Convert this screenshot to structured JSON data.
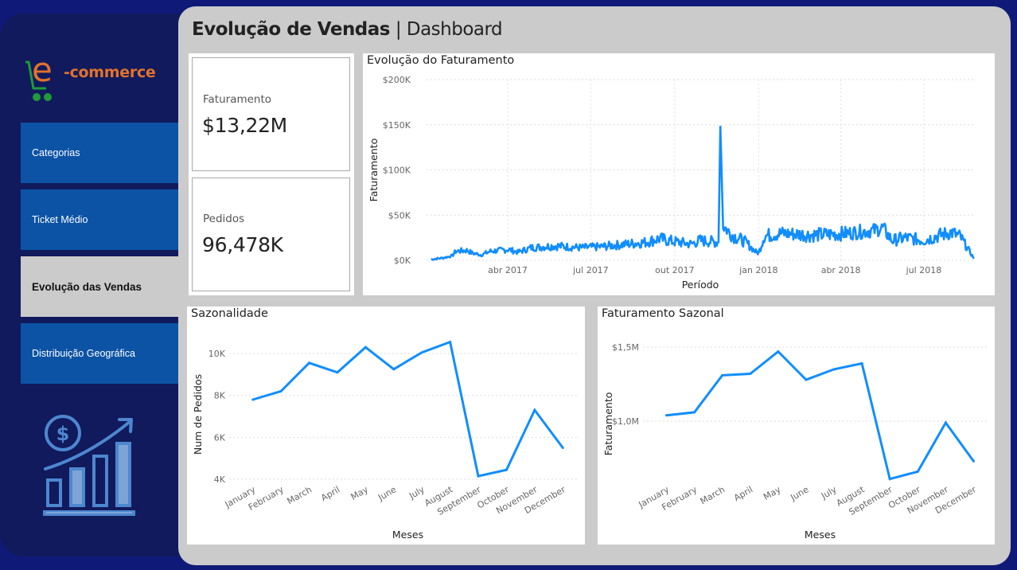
{
  "sidebar": {
    "logo": {
      "prefix": "e",
      "text": "-commerce",
      "cart_color": "#1f9b3a",
      "text_color": "#e2722c"
    },
    "items": [
      {
        "label": "Categorias",
        "active": false
      },
      {
        "label": "Ticket Médio",
        "active": false
      },
      {
        "label": "Evolução das Vendas",
        "active": true
      },
      {
        "label": "Distribuição Geográfica",
        "active": false
      }
    ],
    "illustration_icon": "sales-growth-icon"
  },
  "header": {
    "title_bold": "Evolução de Vendas",
    "separator": "|",
    "title_light": "Dashboard"
  },
  "kpis": [
    {
      "label": "Faturamento",
      "value": "$13,22M"
    },
    {
      "label": "Pedidos",
      "value": "96,478K"
    }
  ],
  "colors": {
    "line": "#118dff",
    "nav_bg": "#0c53a5",
    "nav_active": "#cbcbcb",
    "sidebar_bg": "#111a5c",
    "page_bg": "#0f1a78"
  },
  "chart_data": [
    {
      "id": "evolucao",
      "type": "line",
      "title": "Evolução do Faturamento",
      "xlabel": "Período",
      "ylabel": "Faturamento",
      "ylim": [
        0,
        200000
      ],
      "yticks": [
        {
          "value": 0,
          "label": "$0K"
        },
        {
          "value": 50000,
          "label": "$50K"
        },
        {
          "value": 100000,
          "label": "$100K"
        },
        {
          "value": 150000,
          "label": "$150K"
        },
        {
          "value": 200000,
          "label": "$200K"
        }
      ],
      "xticks": [
        {
          "day": 89,
          "label": "abr 2017"
        },
        {
          "day": 180,
          "label": "jul 2017"
        },
        {
          "day": 272,
          "label": "out 2017"
        },
        {
          "day": 364,
          "label": "jan 2018"
        },
        {
          "day": 454,
          "label": "abr 2018"
        },
        {
          "day": 545,
          "label": "jul 2018"
        }
      ],
      "xlim": [
        0,
        600
      ],
      "grid": true,
      "series_anchors": [
        [
          5,
          1000
        ],
        [
          20,
          3000
        ],
        [
          28,
          5000
        ],
        [
          32,
          10000
        ],
        [
          45,
          11000
        ],
        [
          50,
          8000
        ],
        [
          60,
          6000
        ],
        [
          70,
          10000
        ],
        [
          90,
          12000
        ],
        [
          100,
          9000
        ],
        [
          115,
          14000
        ],
        [
          140,
          16000
        ],
        [
          170,
          14000
        ],
        [
          190,
          15000
        ],
        [
          220,
          18000
        ],
        [
          240,
          20000
        ],
        [
          255,
          24000
        ],
        [
          270,
          21000
        ],
        [
          290,
          18000
        ],
        [
          300,
          22000
        ],
        [
          320,
          20000
        ],
        [
          322,
          148000
        ],
        [
          325,
          38000
        ],
        [
          335,
          28000
        ],
        [
          350,
          20000
        ],
        [
          360,
          10000
        ],
        [
          364,
          8000
        ],
        [
          370,
          27000
        ],
        [
          390,
          30000
        ],
        [
          420,
          28000
        ],
        [
          450,
          29000
        ],
        [
          470,
          31000
        ],
        [
          490,
          33000
        ],
        [
          500,
          36000
        ],
        [
          510,
          22000
        ],
        [
          525,
          25000
        ],
        [
          545,
          22000
        ],
        [
          560,
          27000
        ],
        [
          575,
          31000
        ],
        [
          585,
          26000
        ],
        [
          595,
          10000
        ],
        [
          600,
          2000
        ]
      ]
    },
    {
      "id": "sazonalidade",
      "type": "line",
      "title": "Sazonalidade",
      "xlabel": "Meses",
      "ylabel": "Num de Pedidos",
      "ylim": [
        4000,
        10800
      ],
      "yticks": [
        {
          "value": 4000,
          "label": "4K"
        },
        {
          "value": 6000,
          "label": "6K"
        },
        {
          "value": 8000,
          "label": "8K"
        },
        {
          "value": 10000,
          "label": "10K"
        }
      ],
      "categories": [
        "January",
        "February",
        "March",
        "April",
        "May",
        "June",
        "July",
        "August",
        "September",
        "October",
        "November",
        "December"
      ],
      "values": [
        7800,
        8200,
        9550,
        9100,
        10300,
        9250,
        10050,
        10550,
        4150,
        4450,
        7300,
        5500
      ],
      "grid": true
    },
    {
      "id": "fatsazonal",
      "type": "line",
      "title": "Faturamento Sazonal",
      "xlabel": "Meses",
      "ylabel": "Faturamento",
      "ylim": [
        0.5,
        1.55
      ],
      "yticks": [
        {
          "value": 1.0,
          "label": "$1,0M"
        },
        {
          "value": 1.5,
          "label": "$1,5M"
        }
      ],
      "categories": [
        "January",
        "February",
        "March",
        "April",
        "May",
        "June",
        "July",
        "August",
        "September",
        "October",
        "November",
        "December"
      ],
      "values": [
        1.04,
        1.06,
        1.31,
        1.32,
        1.47,
        1.28,
        1.35,
        1.39,
        0.61,
        0.66,
        0.99,
        0.73
      ],
      "grid": true
    }
  ]
}
